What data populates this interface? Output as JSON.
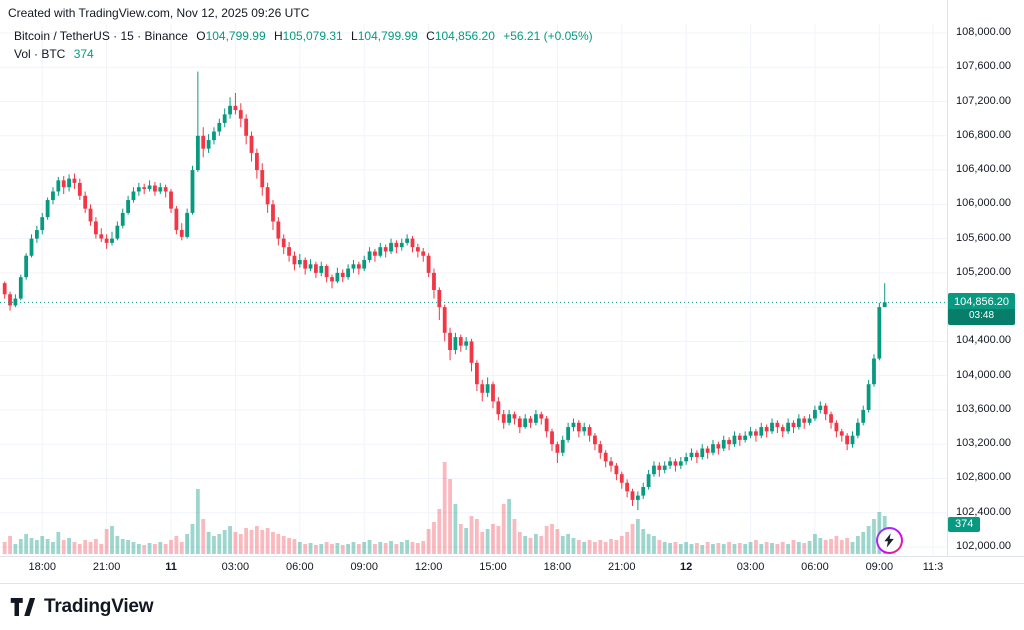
{
  "attribution": "Created with TradingView.com, Nov 12, 2025 09:26 UTC",
  "legend": {
    "title": "Bitcoin / TetherUS · 15 · Binance",
    "ohlc": {
      "o_label": "O",
      "o": "104,799.99",
      "h_label": "H",
      "h": "105,079.31",
      "l_label": "L",
      "l": "104,799.99",
      "c_label": "C",
      "c": "104,856.20",
      "change": "+56.21 (+0.05%)"
    },
    "volume_label": "Vol · BTC",
    "volume_value": "374"
  },
  "price_badge": {
    "price": "104,856.20",
    "countdown": "03:48"
  },
  "volume_badge": "374",
  "footer": {
    "brand": "TradingView"
  },
  "colors": {
    "up": "#089981",
    "down": "#f23645",
    "vol_up": "rgba(8,153,129,0.40)",
    "vol_down": "rgba(242,54,69,0.35)",
    "grid": "#f0f3fa",
    "axis_border": "#e0e3eb",
    "text": "#131722",
    "badge": "#089981"
  },
  "chart_data": {
    "type": "candlestick",
    "title": "Bitcoin / TetherUS",
    "exchange": "Binance",
    "interval": "15m",
    "price_range": [
      102000,
      108000
    ],
    "last_bar": {
      "open": 104799.99,
      "high": 105079.31,
      "low": 104799.99,
      "close": 104856.2,
      "change": 56.21,
      "change_pct": 0.05,
      "volume_btc": 374,
      "countdown": "03:48"
    },
    "y_ticks": [
      "108,000.00",
      "107,600.00",
      "107,200.00",
      "106,800.00",
      "106,400.00",
      "106,000.00",
      "105,600.00",
      "105,200.00",
      "104,800.00",
      "104,400.00",
      "104,000.00",
      "103,600.00",
      "103,200.00",
      "102,800.00",
      "102,400.00",
      "102,000.00"
    ],
    "x_ticks": [
      {
        "label": "18:00",
        "i": 7
      },
      {
        "label": "21:00",
        "i": 19
      },
      {
        "label": "11",
        "i": 31,
        "bold": true
      },
      {
        "label": "03:00",
        "i": 43
      },
      {
        "label": "06:00",
        "i": 55
      },
      {
        "label": "09:00",
        "i": 67
      },
      {
        "label": "12:00",
        "i": 79
      },
      {
        "label": "15:00",
        "i": 91
      },
      {
        "label": "18:00",
        "i": 103
      },
      {
        "label": "21:00",
        "i": 115
      },
      {
        "label": "12",
        "i": 127,
        "bold": true
      },
      {
        "label": "03:00",
        "i": 139
      },
      {
        "label": "06:00",
        "i": 151
      },
      {
        "label": "09:00",
        "i": 163
      },
      {
        "label": "11:3",
        "i": 173
      }
    ],
    "candles": [
      [
        105080,
        105100,
        104900,
        104950
      ],
      [
        104950,
        104980,
        104760,
        104820
      ],
      [
        104820,
        104950,
        104800,
        104900
      ],
      [
        104900,
        105180,
        104880,
        105150
      ],
      [
        105150,
        105430,
        105120,
        105400
      ],
      [
        105400,
        105650,
        105380,
        105600
      ],
      [
        105600,
        105750,
        105550,
        105700
      ],
      [
        105700,
        105900,
        105650,
        105850
      ],
      [
        105850,
        106080,
        105820,
        106050
      ],
      [
        106050,
        106200,
        106000,
        106150
      ],
      [
        106150,
        106320,
        106100,
        106280
      ],
      [
        106280,
        106330,
        106120,
        106200
      ],
      [
        106200,
        106350,
        106150,
        106300
      ],
      [
        106300,
        106360,
        106180,
        106250
      ],
      [
        106250,
        106300,
        106050,
        106100
      ],
      [
        106100,
        106150,
        105900,
        105950
      ],
      [
        105950,
        106000,
        105750,
        105800
      ],
      [
        105800,
        105850,
        105600,
        105650
      ],
      [
        105650,
        105720,
        105560,
        105600
      ],
      [
        105600,
        105650,
        105480,
        105550
      ],
      [
        105550,
        105680,
        105520,
        105600
      ],
      [
        105600,
        105800,
        105580,
        105750
      ],
      [
        105750,
        105950,
        105720,
        105900
      ],
      [
        105900,
        106100,
        105880,
        106050
      ],
      [
        106050,
        106200,
        106020,
        106150
      ],
      [
        106150,
        106250,
        106100,
        106200
      ],
      [
        106200,
        106240,
        106120,
        106180
      ],
      [
        106180,
        106280,
        106150,
        106220
      ],
      [
        106220,
        106260,
        106100,
        106150
      ],
      [
        106150,
        106250,
        106120,
        106200
      ],
      [
        106200,
        106230,
        106080,
        106150
      ],
      [
        106150,
        106180,
        105900,
        105950
      ],
      [
        105950,
        105980,
        105650,
        105700
      ],
      [
        105700,
        105780,
        105580,
        105620
      ],
      [
        105620,
        105950,
        105600,
        105900
      ],
      [
        105900,
        106450,
        105880,
        106400
      ],
      [
        106400,
        107550,
        106380,
        106800
      ],
      [
        106800,
        106900,
        106550,
        106650
      ],
      [
        106650,
        106820,
        106600,
        106750
      ],
      [
        106750,
        106900,
        106700,
        106850
      ],
      [
        106850,
        107000,
        106800,
        106950
      ],
      [
        106950,
        107120,
        106900,
        107050
      ],
      [
        107050,
        107250,
        107000,
        107150
      ],
      [
        107150,
        107300,
        107050,
        107100
      ],
      [
        107100,
        107180,
        106900,
        107000
      ],
      [
        107000,
        107050,
        106700,
        106800
      ],
      [
        106800,
        106850,
        106500,
        106600
      ],
      [
        106600,
        106650,
        106300,
        106400
      ],
      [
        106400,
        106480,
        106100,
        106200
      ],
      [
        106200,
        106250,
        105900,
        106000
      ],
      [
        106000,
        106050,
        105700,
        105800
      ],
      [
        105800,
        105850,
        105520,
        105600
      ],
      [
        105600,
        105650,
        105420,
        105500
      ],
      [
        105500,
        105560,
        105330,
        105400
      ],
      [
        105400,
        105450,
        105230,
        105300
      ],
      [
        105300,
        105420,
        105260,
        105350
      ],
      [
        105350,
        105380,
        105180,
        105250
      ],
      [
        105250,
        105360,
        105220,
        105300
      ],
      [
        105300,
        105330,
        105140,
        105200
      ],
      [
        105200,
        105330,
        105160,
        105280
      ],
      [
        105280,
        105300,
        105090,
        105150
      ],
      [
        105150,
        105180,
        105020,
        105100
      ],
      [
        105100,
        105260,
        105080,
        105200
      ],
      [
        105200,
        105240,
        105090,
        105150
      ],
      [
        105150,
        105300,
        105120,
        105250
      ],
      [
        105250,
        105350,
        105200,
        105300
      ],
      [
        105300,
        105330,
        105180,
        105250
      ],
      [
        105250,
        105400,
        105220,
        105350
      ],
      [
        105350,
        105500,
        105320,
        105450
      ],
      [
        105450,
        105480,
        105330,
        105400
      ],
      [
        105400,
        105550,
        105380,
        105500
      ],
      [
        105500,
        105530,
        105380,
        105450
      ],
      [
        105450,
        105600,
        105420,
        105550
      ],
      [
        105550,
        105580,
        105430,
        105500
      ],
      [
        105500,
        105600,
        105460,
        105550
      ],
      [
        105550,
        105650,
        105520,
        105600
      ],
      [
        105600,
        105630,
        105440,
        105500
      ],
      [
        105500,
        105540,
        105380,
        105450
      ],
      [
        105450,
        105490,
        105330,
        105400
      ],
      [
        105400,
        105430,
        105150,
        105200
      ],
      [
        105200,
        105250,
        104900,
        105000
      ],
      [
        105000,
        105030,
        104650,
        104800
      ],
      [
        104800,
        104830,
        104400,
        104500
      ],
      [
        104500,
        104560,
        104180,
        104300
      ],
      [
        104300,
        104500,
        104250,
        104450
      ],
      [
        104450,
        104480,
        104280,
        104350
      ],
      [
        104350,
        104450,
        104300,
        104400
      ],
      [
        104400,
        104430,
        104050,
        104150
      ],
      [
        104150,
        104180,
        103820,
        103900
      ],
      [
        103900,
        103950,
        103700,
        103800
      ],
      [
        103800,
        103980,
        103750,
        103900
      ],
      [
        103900,
        103930,
        103620,
        103700
      ],
      [
        103700,
        103750,
        103480,
        103550
      ],
      [
        103550,
        103600,
        103380,
        103450
      ],
      [
        103450,
        103600,
        103420,
        103550
      ],
      [
        103550,
        103580,
        103430,
        103500
      ],
      [
        103500,
        103530,
        103330,
        103400
      ],
      [
        103400,
        103550,
        103380,
        103500
      ],
      [
        103500,
        103530,
        103390,
        103450
      ],
      [
        103450,
        103600,
        103420,
        103550
      ],
      [
        103550,
        103580,
        103430,
        103500
      ],
      [
        103500,
        103530,
        103280,
        103350
      ],
      [
        103350,
        103380,
        103120,
        103200
      ],
      [
        103200,
        103230,
        102980,
        103100
      ],
      [
        103100,
        103300,
        103060,
        103250
      ],
      [
        103250,
        103450,
        103220,
        103400
      ],
      [
        103400,
        103500,
        103350,
        103450
      ],
      [
        103450,
        103480,
        103280,
        103350
      ],
      [
        103350,
        103450,
        103300,
        103400
      ],
      [
        103400,
        103430,
        103230,
        103300
      ],
      [
        103300,
        103330,
        103130,
        103200
      ],
      [
        103200,
        103240,
        103030,
        103100
      ],
      [
        103100,
        103130,
        102930,
        103000
      ],
      [
        103000,
        103050,
        102880,
        102950
      ],
      [
        102950,
        102980,
        102780,
        102850
      ],
      [
        102850,
        102880,
        102680,
        102750
      ],
      [
        102750,
        102790,
        102580,
        102650
      ],
      [
        102650,
        102680,
        102480,
        102550
      ],
      [
        102550,
        102650,
        102430,
        102600
      ],
      [
        102600,
        102750,
        102560,
        102700
      ],
      [
        102700,
        102900,
        102670,
        102850
      ],
      [
        102850,
        103000,
        102820,
        102950
      ],
      [
        102950,
        102990,
        102820,
        102900
      ],
      [
        102900,
        103000,
        102860,
        102950
      ],
      [
        102950,
        103050,
        102910,
        103000
      ],
      [
        103000,
        103030,
        102880,
        102950
      ],
      [
        102950,
        103050,
        102910,
        103000
      ],
      [
        103000,
        103100,
        102960,
        103050
      ],
      [
        103050,
        103150,
        103010,
        103100
      ],
      [
        103100,
        103130,
        102980,
        103050
      ],
      [
        103050,
        103200,
        103020,
        103150
      ],
      [
        103150,
        103180,
        103030,
        103100
      ],
      [
        103100,
        103250,
        103070,
        103200
      ],
      [
        103200,
        103230,
        103080,
        103150
      ],
      [
        103150,
        103300,
        103120,
        103250
      ],
      [
        103250,
        103280,
        103130,
        103200
      ],
      [
        103200,
        103350,
        103170,
        103300
      ],
      [
        103300,
        103330,
        103180,
        103250
      ],
      [
        103250,
        103350,
        103220,
        103300
      ],
      [
        103300,
        103400,
        103270,
        103350
      ],
      [
        103350,
        103380,
        103230,
        103300
      ],
      [
        103300,
        103450,
        103270,
        103400
      ],
      [
        103400,
        103430,
        103280,
        103350
      ],
      [
        103350,
        103500,
        103320,
        103450
      ],
      [
        103450,
        103480,
        103330,
        103400
      ],
      [
        103400,
        103430,
        103280,
        103350
      ],
      [
        103350,
        103500,
        103320,
        103450
      ],
      [
        103450,
        103480,
        103330,
        103400
      ],
      [
        103400,
        103550,
        103370,
        103500
      ],
      [
        103500,
        103530,
        103380,
        103450
      ],
      [
        103450,
        103550,
        103420,
        103500
      ],
      [
        103500,
        103650,
        103470,
        103600
      ],
      [
        103600,
        103700,
        103560,
        103650
      ],
      [
        103650,
        103680,
        103480,
        103550
      ],
      [
        103550,
        103580,
        103380,
        103450
      ],
      [
        103450,
        103480,
        103280,
        103350
      ],
      [
        103350,
        103380,
        103230,
        103300
      ],
      [
        103300,
        103330,
        103130,
        103200
      ],
      [
        103200,
        103350,
        103160,
        103300
      ],
      [
        103300,
        103500,
        103270,
        103450
      ],
      [
        103450,
        103650,
        103420,
        103600
      ],
      [
        103600,
        103950,
        103570,
        103900
      ],
      [
        103900,
        104250,
        103870,
        104200
      ],
      [
        104200,
        104850,
        104180,
        104799.99
      ],
      [
        104799.99,
        105079.31,
        104799.99,
        104856.2
      ]
    ],
    "volume": [
      12,
      18,
      10,
      15,
      20,
      16,
      14,
      18,
      15,
      12,
      22,
      14,
      16,
      12,
      10,
      14,
      12,
      15,
      10,
      25,
      28,
      18,
      15,
      14,
      12,
      10,
      9,
      11,
      10,
      12,
      10,
      14,
      18,
      12,
      20,
      30,
      65,
      35,
      22,
      18,
      20,
      24,
      28,
      22,
      20,
      26,
      24,
      28,
      24,
      26,
      22,
      20,
      18,
      16,
      15,
      12,
      10,
      11,
      9,
      10,
      12,
      10,
      11,
      9,
      10,
      12,
      10,
      12,
      14,
      10,
      12,
      11,
      13,
      10,
      12,
      14,
      12,
      11,
      13,
      25,
      32,
      45,
      92,
      75,
      50,
      30,
      26,
      38,
      35,
      22,
      25,
      30,
      28,
      50,
      55,
      35,
      22,
      18,
      16,
      20,
      18,
      28,
      30,
      25,
      18,
      20,
      16,
      14,
      12,
      14,
      12,
      14,
      12,
      15,
      14,
      18,
      22,
      30,
      35,
      25,
      20,
      18,
      14,
      12,
      11,
      12,
      10,
      12,
      10,
      11,
      9,
      12,
      10,
      11,
      10,
      12,
      10,
      11,
      10,
      12,
      14,
      10,
      12,
      11,
      10,
      12,
      10,
      14,
      12,
      11,
      13,
      20,
      16,
      14,
      15,
      18,
      14,
      16,
      12,
      18,
      22,
      28,
      35,
      42,
      38
    ]
  }
}
